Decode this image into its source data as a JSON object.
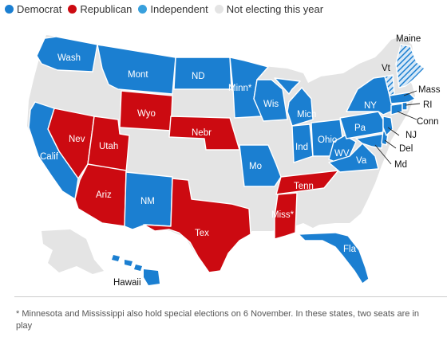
{
  "legend": {
    "items": [
      {
        "label": "Democrat",
        "color": "#1b7fd1"
      },
      {
        "label": "Republican",
        "color": "#cc0a11"
      },
      {
        "label": "Independent",
        "color": "#38a0dd"
      },
      {
        "label": "Not electing this year",
        "color": "#e4e4e4"
      }
    ]
  },
  "colors": {
    "democrat": "#1b7fd1",
    "republican": "#cc0a11",
    "none": "#e4e4e4",
    "line": "#222222"
  },
  "states": {
    "wash": "Wash",
    "mont": "Mont",
    "nd": "ND",
    "minn": "Minn*",
    "wis": "Wis",
    "mich": "Mich",
    "ny": "NY",
    "maine": "Maine",
    "vt": "Vt",
    "mass": "Mass",
    "ri": "RI",
    "conn": "Conn",
    "nj": "NJ",
    "del": "Del",
    "md": "Md",
    "pa": "Pa",
    "ohio": "Ohio",
    "ind": "Ind",
    "wv": "WV",
    "va": "Va",
    "wyo": "Wyo",
    "nebr": "Nebr",
    "nev": "Nev",
    "utah": "Utah",
    "calif": "Calif",
    "ariz": "Ariz",
    "nm": "NM",
    "mo": "Mo",
    "tenn": "Tenn",
    "miss": "Miss*",
    "tex": "Tex",
    "fla": "Fla",
    "hawaii": "Hawaii"
  },
  "footnote": "* Minnesota and Mississippi also hold special elections on 6 November. In these states, two seats are in play"
}
